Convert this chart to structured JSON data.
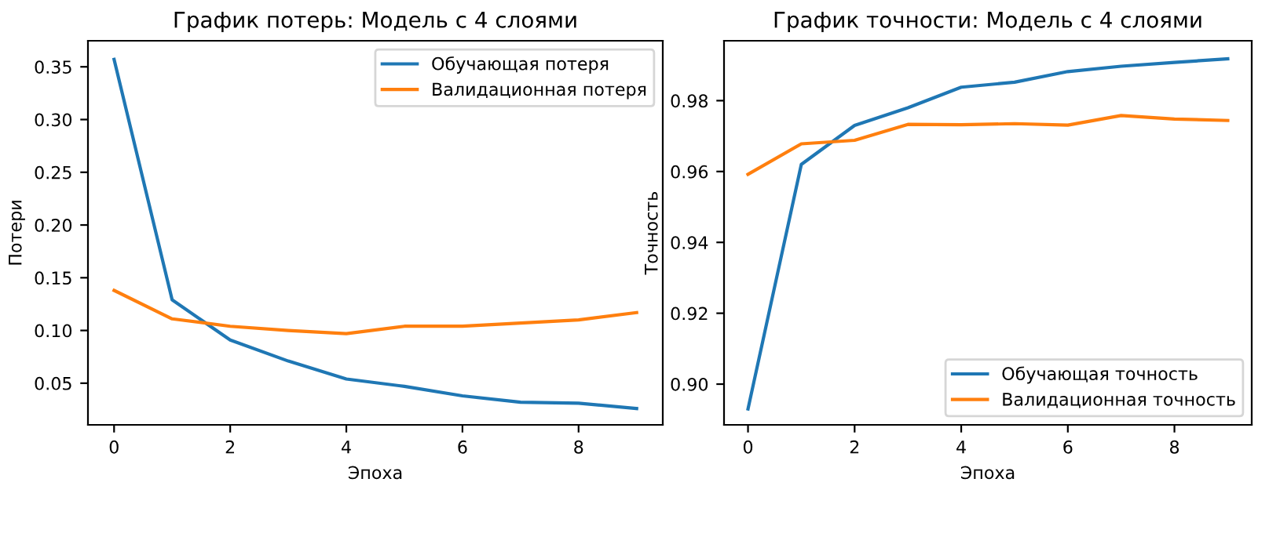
{
  "chart_data": [
    {
      "type": "line",
      "title": "График потерь: Модель с 4 слоями",
      "xlabel": "Эпоха",
      "ylabel": "Потери",
      "x": [
        0,
        1,
        2,
        3,
        4,
        5,
        6,
        7,
        8,
        9
      ],
      "series": [
        {
          "name": "Обучающая потеря",
          "color": "#1f77b4",
          "values": [
            0.357,
            0.129,
            0.091,
            0.071,
            0.054,
            0.047,
            0.038,
            0.032,
            0.031,
            0.026
          ]
        },
        {
          "name": "Валидационная потеря",
          "color": "#ff7f0e",
          "values": [
            0.138,
            0.111,
            0.104,
            0.1,
            0.097,
            0.104,
            0.104,
            0.107,
            0.11,
            0.117
          ]
        }
      ],
      "xlim": [
        -0.45,
        9.45
      ],
      "ylim": [
        0.0105,
        0.3747
      ],
      "xticks": [
        0,
        2,
        4,
        6,
        8
      ],
      "yticks": [
        {
          "value": 0.05,
          "label": "0.05"
        },
        {
          "value": 0.1,
          "label": "0.10"
        },
        {
          "value": 0.15,
          "label": "0.15"
        },
        {
          "value": 0.2,
          "label": "0.20"
        },
        {
          "value": 0.25,
          "label": "0.25"
        },
        {
          "value": 0.3,
          "label": "0.30"
        },
        {
          "value": 0.35,
          "label": "0.35"
        }
      ],
      "legend": "top right",
      "grid": false,
      "line_style": "solid"
    },
    {
      "type": "line",
      "title": "График точности: Модель с 4 слоями",
      "xlabel": "Эпоха",
      "ylabel": "Точность",
      "x": [
        0,
        1,
        2,
        3,
        4,
        5,
        6,
        7,
        8,
        9
      ],
      "series": [
        {
          "name": "Обучающая точность",
          "color": "#1f77b4",
          "values": [
            0.893,
            0.962,
            0.973,
            0.978,
            0.9838,
            0.9852,
            0.9882,
            0.9897,
            0.9908,
            0.9918
          ]
        },
        {
          "name": "Валидационная точность",
          "color": "#ff7f0e",
          "values": [
            0.9592,
            0.9678,
            0.9688,
            0.9733,
            0.9732,
            0.9735,
            0.9731,
            0.9758,
            0.9748,
            0.9744
          ]
        }
      ],
      "xlim": [
        -0.45,
        9.45
      ],
      "ylim": [
        0.8885,
        0.9969
      ],
      "xticks": [
        0,
        2,
        4,
        6,
        8
      ],
      "yticks": [
        {
          "value": 0.9,
          "label": "0.90"
        },
        {
          "value": 0.92,
          "label": "0.92"
        },
        {
          "value": 0.94,
          "label": "0.94"
        },
        {
          "value": 0.96,
          "label": "0.96"
        },
        {
          "value": 0.98,
          "label": "0.98"
        }
      ],
      "legend": "lower right",
      "grid": false,
      "line_style": "solid"
    }
  ]
}
